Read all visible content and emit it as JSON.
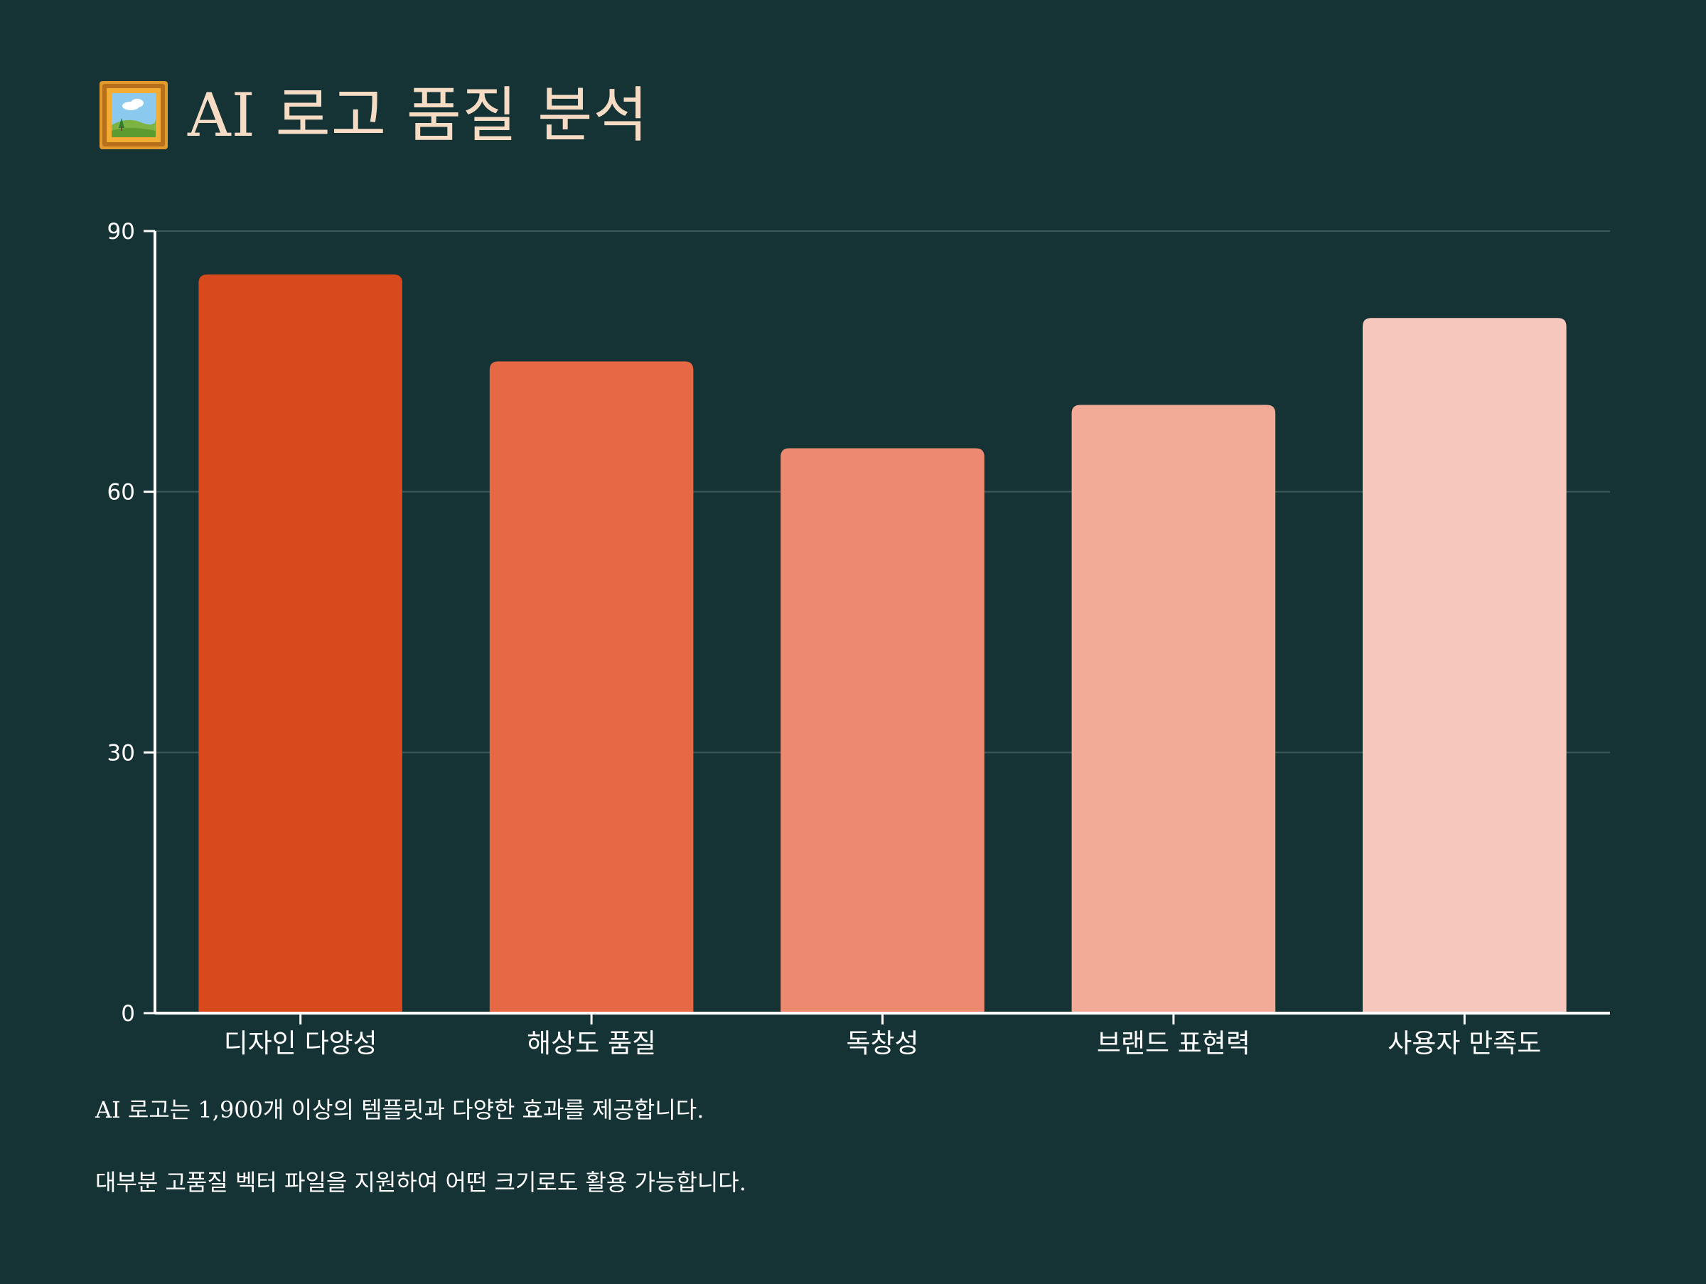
{
  "page": {
    "title": "AI 로고 품질 분석",
    "title_icon": "framed-picture-icon",
    "notes": [
      "AI 로고는 1,900개 이상의 템플릿과 다양한 효과를 제공합니다.",
      "대부분 고품질 벡터 파일을 지원하여 어떤 크기로도 활용 가능합니다."
    ]
  },
  "colors": {
    "background": "#153234",
    "title": "#f6dcc4",
    "axis": "#ffffff",
    "grid": "#3d5a58"
  },
  "chart_data": {
    "type": "bar",
    "title": "AI 로고 품질 분석",
    "xlabel": "",
    "ylabel": "",
    "categories": [
      "디자인 다양성",
      "해상도 품질",
      "독창성",
      "브랜드 표현력",
      "사용자 만족도"
    ],
    "values": [
      85,
      75,
      65,
      70,
      80
    ],
    "bar_colors": [
      "#d9491e",
      "#e76844",
      "#ec8970",
      "#f1ab97",
      "#f6c8bd"
    ],
    "ylim": [
      0,
      90
    ],
    "yticks": [
      0,
      30,
      60,
      90
    ],
    "grid": true,
    "legend": "none"
  }
}
